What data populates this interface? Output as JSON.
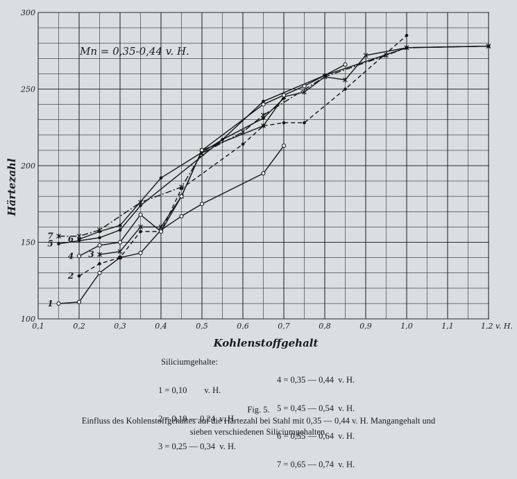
{
  "chart_data": {
    "type": "line",
    "title": "",
    "annotation": "Mn = 0,35-0,44 v. H.",
    "xlabel": "Kohlenstoffgehalt",
    "ylabel": "Härtezahl",
    "xlim": [
      0.1,
      1.2
    ],
    "ylim": [
      100,
      300
    ],
    "grid": true,
    "x_ticks": [
      "0,1",
      "0,2",
      "0,3",
      "0,4",
      "0,5",
      "0,6",
      "0,7",
      "0,8",
      "0,9",
      "1,0",
      "1,1",
      "1,2 v. H."
    ],
    "y_ticks": [
      "100",
      "150",
      "200",
      "250",
      "300"
    ],
    "series": [
      {
        "name": "1",
        "values": [
          [
            0.15,
            110
          ],
          [
            0.2,
            111
          ],
          [
            0.25,
            130
          ],
          [
            0.3,
            140
          ],
          [
            0.35,
            143
          ],
          [
            0.4,
            158
          ],
          [
            0.45,
            167
          ],
          [
            0.5,
            175
          ],
          [
            0.65,
            195
          ],
          [
            0.7,
            213
          ]
        ]
      },
      {
        "name": "2",
        "values": [
          [
            0.2,
            128
          ],
          [
            0.25,
            136
          ],
          [
            0.3,
            140
          ],
          [
            0.35,
            157
          ],
          [
            0.4,
            157
          ],
          [
            0.45,
            185
          ],
          [
            0.6,
            214
          ],
          [
            0.65,
            226
          ],
          [
            0.7,
            228
          ],
          [
            0.75,
            228
          ],
          [
            0.85,
            250
          ],
          [
            1.0,
            285
          ]
        ]
      },
      {
        "name": "3",
        "values": [
          [
            0.25,
            142
          ],
          [
            0.3,
            144
          ],
          [
            0.35,
            160
          ],
          [
            0.4,
            160
          ],
          [
            0.45,
            180
          ],
          [
            0.5,
            210
          ],
          [
            0.65,
            226
          ],
          [
            0.7,
            245
          ],
          [
            0.75,
            248
          ],
          [
            0.8,
            258
          ],
          [
            0.85,
            256
          ],
          [
            0.9,
            272
          ],
          [
            1.0,
            277
          ],
          [
            1.2,
            278
          ]
        ]
      },
      {
        "name": "4",
        "values": [
          [
            0.2,
            141
          ],
          [
            0.25,
            148
          ],
          [
            0.3,
            150
          ],
          [
            0.35,
            168
          ],
          [
            0.4,
            157
          ],
          [
            0.45,
            180
          ],
          [
            0.5,
            210
          ],
          [
            0.65,
            240
          ],
          [
            0.7,
            246
          ],
          [
            0.75,
            252
          ],
          [
            0.85,
            266
          ]
        ]
      },
      {
        "name": "5",
        "values": [
          [
            0.15,
            149
          ],
          [
            0.2,
            151
          ],
          [
            0.25,
            153
          ],
          [
            0.3,
            158
          ],
          [
            0.35,
            174
          ],
          [
            0.55,
            217
          ],
          [
            0.65,
            231
          ],
          [
            0.7,
            244
          ]
        ]
      },
      {
        "name": "6",
        "values": [
          [
            0.2,
            152
          ],
          [
            0.25,
            157
          ],
          [
            0.3,
            161
          ],
          [
            0.4,
            192
          ],
          [
            0.55,
            217
          ],
          [
            0.65,
            242
          ],
          [
            0.8,
            259
          ],
          [
            1.0,
            277
          ],
          [
            1.2,
            278
          ]
        ]
      },
      {
        "name": "7",
        "values": [
          [
            0.15,
            154
          ],
          [
            0.2,
            154
          ],
          [
            0.25,
            158
          ],
          [
            0.35,
            176
          ],
          [
            0.45,
            186
          ],
          [
            0.5,
            208
          ],
          [
            0.6,
            222
          ],
          [
            0.65,
            233
          ],
          [
            0.8,
            258
          ],
          [
            0.95,
            272
          ],
          [
            1.0,
            277
          ],
          [
            1.2,
            278
          ]
        ]
      }
    ]
  },
  "legend": {
    "heading": "Siliciumgehalte:",
    "left": [
      "1 = 0,10        v. H.",
      "2 = 0,10 — 0,24  v. H.",
      "3 = 0,25 — 0,34  v. H."
    ],
    "right": [
      "4 = 0,35 — 0,44  v. H.",
      "5 = 0,45 — 0,54  v. H.",
      "6 = 0,55 — 0,64  v. H.",
      "7 = 0,65 — 0,74  v. H."
    ]
  },
  "caption": {
    "fig": "Fig. 5.",
    "line1": "Einfluss des Kohlenstoffgehaltes auf die Härtezahl bei Stahl mit 0,35 — 0,44 v. H. Mangangehalt und",
    "line2": "sieben verschiedenen Siliciumgehalten."
  }
}
